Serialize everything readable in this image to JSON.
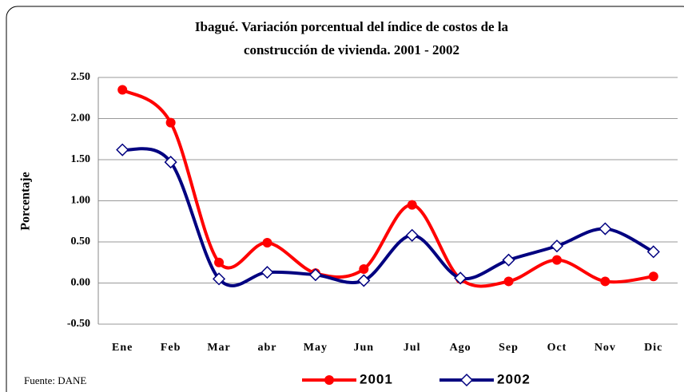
{
  "chart_data": {
    "type": "line",
    "title": [
      "Ibagué. Variación porcentual del índice de costos de la",
      "construcción de vivienda. 2001 - 2002"
    ],
    "y_label": "Porcentaje",
    "source": "Fuente: DANE",
    "categories": [
      "Ene",
      "Feb",
      "Mar",
      "abr",
      "May",
      "Jun",
      "Jul",
      "Ago",
      "Sep",
      "Oct",
      "Nov",
      "Dic"
    ],
    "series": [
      {
        "name": "2001",
        "color": "#ff0000",
        "marker": "circle",
        "values": [
          2.35,
          1.95,
          0.25,
          0.49,
          0.12,
          0.17,
          0.95,
          0.05,
          0.02,
          0.28,
          0.02,
          0.08
        ]
      },
      {
        "name": "2002",
        "color": "#000080",
        "marker": "diamond",
        "values": [
          1.62,
          1.47,
          0.05,
          0.13,
          0.1,
          0.03,
          0.58,
          0.06,
          0.28,
          0.45,
          0.66,
          0.38
        ]
      }
    ],
    "ylim": [
      -0.5,
      2.5
    ],
    "yticks": [
      {
        "value": -0.5,
        "label": "-0.50"
      },
      {
        "value": 0,
        "label": "0.00"
      },
      {
        "value": 0.5,
        "label": "0.50"
      },
      {
        "value": 1,
        "label": "1.00"
      },
      {
        "value": 1.5,
        "label": "1.50"
      },
      {
        "value": 2,
        "label": "2.00"
      },
      {
        "value": 2.5,
        "label": "2.50"
      }
    ],
    "grid": true,
    "smooth": true,
    "legend": "bottom"
  }
}
